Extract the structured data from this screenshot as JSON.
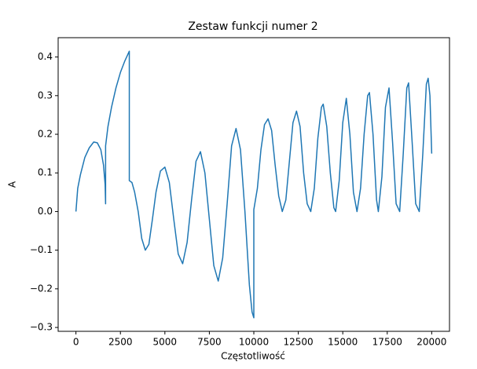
{
  "chart_data": {
    "type": "line",
    "title": "Zestaw funkcji numer 2",
    "x_label": "Częstotliwość",
    "y_label": "A",
    "xlim": [
      -1000,
      21000
    ],
    "ylim": [
      -0.31,
      0.45
    ],
    "xticks": [
      0,
      2500,
      5000,
      7500,
      10000,
      12500,
      15000,
      17500,
      20000
    ],
    "yticks": [
      {
        "value": -0.3,
        "label": "−0.3"
      },
      {
        "value": -0.2,
        "label": "−0.2"
      },
      {
        "value": -0.1,
        "label": "−0.1"
      },
      {
        "value": 0,
        "label": "0.0"
      },
      0.1,
      0.2,
      0.3,
      0.4
    ],
    "series": [
      {
        "color": "#1f77b4",
        "x": [
          0,
          100,
          250,
          500,
          750,
          1000,
          1200,
          1400,
          1550,
          1640,
          1667,
          1667,
          1800,
          2000,
          2250,
          2500,
          2750,
          3000,
          3000,
          3150,
          3300,
          3500,
          3700,
          3900,
          4100,
          4300,
          4500,
          4750,
          5000,
          5250,
          5500,
          5750,
          6000,
          6250,
          6500,
          6750,
          7000,
          7250,
          7500,
          7750,
          8000,
          8250,
          8500,
          8750,
          9000,
          9250,
          9500,
          9750,
          9900,
          10000,
          10000,
          10200,
          10400,
          10600,
          10800,
          11000,
          11200,
          11400,
          11600,
          11800,
          12000,
          12200,
          12400,
          12600,
          12800,
          13000,
          13200,
          13400,
          13600,
          13800,
          13900,
          14100,
          14300,
          14500,
          14600,
          14800,
          15000,
          15200,
          15400,
          15600,
          15800,
          16000,
          16200,
          16400,
          16500,
          16700,
          16900,
          17000,
          17200,
          17400,
          17600,
          17800,
          18000,
          18200,
          18400,
          18600,
          18700,
          18900,
          19100,
          19300,
          19500,
          19700,
          19800,
          19900,
          20000
        ],
        "values": [
          0,
          0.06,
          0.095,
          0.14,
          0.165,
          0.18,
          0.178,
          0.16,
          0.12,
          0.07,
          0.02,
          0.17,
          0.22,
          0.27,
          0.32,
          0.36,
          0.39,
          0.415,
          0.08,
          0.075,
          0.05,
          0.0,
          -0.07,
          -0.1,
          -0.085,
          -0.02,
          0.05,
          0.105,
          0.115,
          0.075,
          -0.02,
          -0.11,
          -0.135,
          -0.08,
          0.03,
          0.13,
          0.155,
          0.1,
          -0.02,
          -0.14,
          -0.18,
          -0.12,
          0.02,
          0.17,
          0.215,
          0.16,
          0.0,
          -0.19,
          -0.26,
          -0.275,
          0.005,
          0.06,
          0.16,
          0.225,
          0.24,
          0.21,
          0.12,
          0.04,
          0.0,
          0.03,
          0.13,
          0.23,
          0.26,
          0.22,
          0.1,
          0.02,
          0.0,
          0.06,
          0.19,
          0.27,
          0.278,
          0.22,
          0.1,
          0.01,
          0.0,
          0.08,
          0.23,
          0.293,
          0.2,
          0.05,
          0.0,
          0.06,
          0.2,
          0.3,
          0.308,
          0.2,
          0.03,
          0.0,
          0.09,
          0.27,
          0.32,
          0.18,
          0.02,
          0.0,
          0.15,
          0.32,
          0.333,
          0.18,
          0.02,
          0.0,
          0.15,
          0.33,
          0.345,
          0.3,
          0.15
        ]
      }
    ]
  }
}
